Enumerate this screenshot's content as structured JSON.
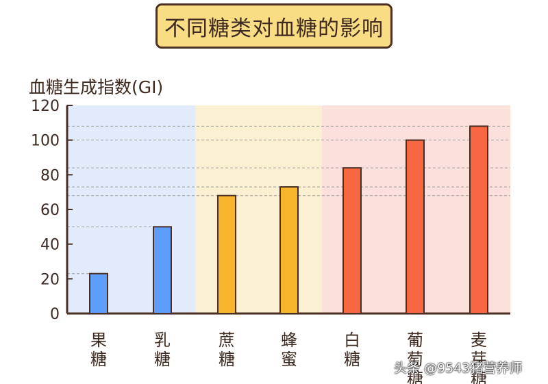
{
  "chart_data": {
    "type": "bar",
    "title": "不同糖类对血糖的影响",
    "ylabel": "血糖生成指数(GI)",
    "xlabel": "",
    "categories": [
      "果糖",
      "乳糖",
      "蔗糖",
      "蜂蜜",
      "白糖",
      "葡萄糖",
      "麦芽糖"
    ],
    "values": [
      23,
      50,
      68,
      73,
      84,
      100,
      108
    ],
    "ylim": [
      0,
      120
    ],
    "yticks": [
      0,
      20,
      40,
      60,
      80,
      100,
      120
    ],
    "grid": "dashed reference lines at bar tops",
    "bar_colors": [
      "#5f9dfa",
      "#5f9dfa",
      "#f7b52b",
      "#f7b52b",
      "#f76741",
      "#f76741",
      "#f76741"
    ],
    "band_colors": [
      "#e1ebfb",
      "#fbf0d2",
      "#fce0db"
    ],
    "bar_outline_color": "#4a2e22"
  },
  "watermark": "头条 @9543猪营养师"
}
